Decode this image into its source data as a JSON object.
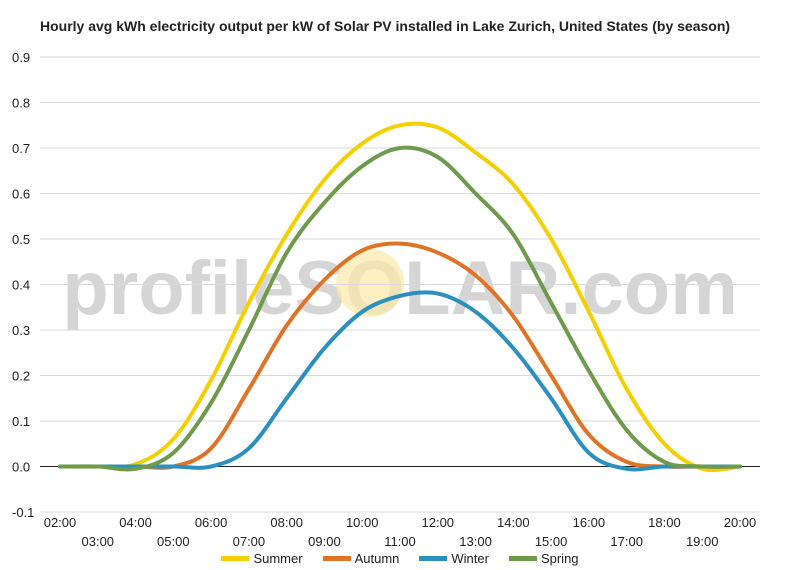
{
  "chart_data": {
    "type": "line",
    "title": "Hourly avg kWh electricity output per kW of Solar PV installed in Lake Zurich, United States (by season)",
    "watermark": "profileSOLAR.com",
    "xlabel": "",
    "ylabel": "",
    "ylim": [
      -0.1,
      0.9
    ],
    "yticks": [
      "-0.1",
      "0.0",
      "0.1",
      "0.2",
      "0.3",
      "0.4",
      "0.5",
      "0.6",
      "0.7",
      "0.8",
      "0.9"
    ],
    "x": [
      "02:00",
      "03:00",
      "04:00",
      "05:00",
      "06:00",
      "07:00",
      "08:00",
      "09:00",
      "10:00",
      "11:00",
      "12:00",
      "13:00",
      "14:00",
      "15:00",
      "16:00",
      "17:00",
      "18:00",
      "19:00",
      "20:00"
    ],
    "grid": true,
    "legend_position": "bottom",
    "series": [
      {
        "name": "Summer",
        "color": "#f5d000",
        "values": [
          0.0,
          0.0,
          0.005,
          0.06,
          0.19,
          0.36,
          0.51,
          0.63,
          0.71,
          0.75,
          0.745,
          0.69,
          0.62,
          0.5,
          0.34,
          0.17,
          0.05,
          -0.005,
          0.0
        ]
      },
      {
        "name": "Autumn",
        "color": "#e07426",
        "values": [
          0.0,
          0.0,
          0.0,
          0.0,
          0.04,
          0.17,
          0.31,
          0.41,
          0.475,
          0.49,
          0.47,
          0.42,
          0.33,
          0.2,
          0.07,
          0.01,
          0.0,
          0.0,
          0.0
        ]
      },
      {
        "name": "Winter",
        "color": "#2b8fbf",
        "values": [
          0.0,
          0.0,
          0.0,
          0.0,
          0.0,
          0.04,
          0.15,
          0.26,
          0.34,
          0.375,
          0.38,
          0.34,
          0.26,
          0.15,
          0.03,
          -0.005,
          0.0,
          0.0,
          0.0
        ]
      },
      {
        "name": "Spring",
        "color": "#6e9a4c",
        "values": [
          0.0,
          0.0,
          -0.005,
          0.03,
          0.14,
          0.3,
          0.47,
          0.58,
          0.66,
          0.7,
          0.68,
          0.6,
          0.51,
          0.36,
          0.21,
          0.08,
          0.01,
          0.0,
          0.0
        ]
      }
    ]
  }
}
